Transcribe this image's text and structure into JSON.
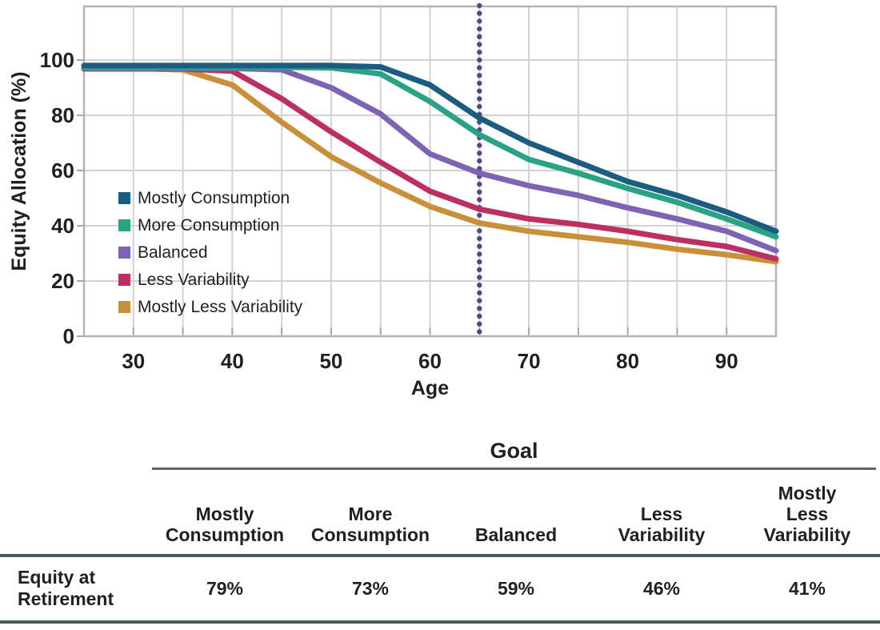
{
  "chart_data": {
    "type": "line",
    "title": "",
    "xlabel": "Age",
    "ylabel": "Equity Allocation (%)",
    "x": [
      25,
      30,
      35,
      40,
      45,
      50,
      55,
      60,
      65,
      70,
      75,
      80,
      85,
      90,
      95
    ],
    "xticks": [
      30,
      40,
      50,
      60,
      70,
      80,
      90
    ],
    "yticks": [
      0,
      20,
      40,
      60,
      80,
      100
    ],
    "xlim": [
      25,
      95
    ],
    "ylim": [
      0,
      119
    ],
    "grid": true,
    "grid_step_x_years": 5,
    "legend_position": "inside-left",
    "series": [
      {
        "name": "Mostly Consumption",
        "color": "#1b5c81",
        "values": [
          98,
          98,
          98,
          98,
          98,
          98,
          97.5,
          91,
          79,
          70,
          63,
          56,
          51,
          45,
          38
        ]
      },
      {
        "name": "More Consumption",
        "color": "#2aa284",
        "values": [
          97.4,
          97.4,
          97.4,
          97.4,
          97.4,
          97.2,
          95,
          85,
          73,
          64,
          59,
          53.5,
          48.5,
          42.5,
          36
        ]
      },
      {
        "name": "Balanced",
        "color": "#7e63b5",
        "values": [
          97,
          97,
          97,
          97,
          96.5,
          90,
          80.5,
          66,
          59,
          54.5,
          51,
          46.5,
          42.5,
          38,
          31
        ]
      },
      {
        "name": "Less Variability",
        "color": "#bb2f62",
        "values": [
          96.8,
          96.8,
          96.8,
          96,
          86,
          74,
          63,
          52.5,
          46,
          42.5,
          40.5,
          38,
          35,
          32.5,
          28
        ]
      },
      {
        "name": "Mostly Less Variability",
        "color": "#c9903a",
        "values": [
          97,
          97,
          96.5,
          91,
          77.5,
          65,
          55.5,
          47,
          41,
          38,
          36,
          34,
          31.5,
          29.5,
          27
        ]
      }
    ],
    "retirement_marker": {
      "x": 65,
      "style": "dotted",
      "color": "#55468c"
    }
  },
  "table": {
    "group_header": "Goal",
    "columns": [
      "Mostly\nConsumption",
      "More\nConsumption",
      "Balanced",
      "Less\nVariability",
      "Mostly\nLess\nVariability"
    ],
    "row_label": "Equity at\nRetirement",
    "values": [
      "79%",
      "73%",
      "59%",
      "46%",
      "41%"
    ]
  },
  "colors": {
    "grid": "#d2d2d2",
    "frame": "#b4b4b4",
    "tick": "#a6a6a6",
    "table_rule": "#4d5960",
    "goal_rule": "#5a656c",
    "text": "#221f20"
  }
}
